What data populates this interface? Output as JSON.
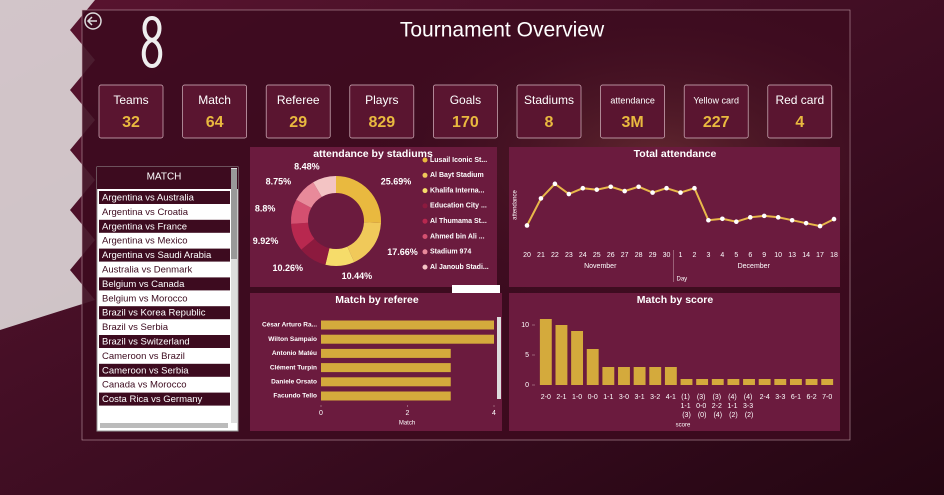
{
  "title": "Tournament Overview",
  "kpis": [
    {
      "label": "Teams",
      "value": 32
    },
    {
      "label": "Match",
      "value": 64
    },
    {
      "label": "Referee",
      "value": 29
    },
    {
      "label": "Playrs",
      "value": 829
    },
    {
      "label": "Goals",
      "value": 170
    },
    {
      "label": "Stadiums",
      "value": 8
    },
    {
      "label": "attendance",
      "value": "3M"
    },
    {
      "label": "Yellow card",
      "value": 227
    },
    {
      "label": "Red card",
      "value": 4
    }
  ],
  "match_list": {
    "header": "MATCH",
    "items": [
      "Argentina vs Australia",
      "Argentina vs Croatia",
      "Argentina vs France",
      "Argentina vs Mexico",
      "Argentina vs Saudi Arabia",
      "Australia vs Denmark",
      "Belgium vs Canada",
      "Belgium vs Morocco",
      "Brazil vs Korea Republic",
      "Brazil vs Serbia",
      "Brazil vs Switzerland",
      "Cameroon vs Brazil",
      "Cameroon vs Serbia",
      "Canada vs Morocco",
      "Costa Rica vs Germany"
    ]
  },
  "chart_data": [
    {
      "type": "pie",
      "title": "attendance by stadiums",
      "categories": [
        "Lusail Iconic St...",
        "Al Bayt Stadium",
        "Khalifa Interna...",
        "Education City ...",
        "Al Thumama St...",
        "Ahmed bin Ali ...",
        "Stadium 974",
        "Al Janoub Stadi..."
      ],
      "values": [
        25.69,
        17.66,
        10.44,
        10.26,
        9.92,
        8.8,
        8.75,
        8.48
      ],
      "value_labels": [
        "25.69%",
        "17.66%",
        "10.44%",
        "10.26%",
        "9.92%",
        "8.8%",
        "8.75%",
        "8.48%"
      ],
      "colors": [
        "#e9b93f",
        "#f0c95a",
        "#f6dc6a",
        "#8c1a3e",
        "#b8284f",
        "#d45070",
        "#e88a9a",
        "#f3c4c4"
      ]
    },
    {
      "type": "line",
      "title": "Total attendance",
      "ylabel": "attendance",
      "xlabel": "Day",
      "x": [
        "20",
        "21",
        "22",
        "23",
        "24",
        "25",
        "26",
        "27",
        "28",
        "29",
        "30",
        "1",
        "2",
        "3",
        "4",
        "5",
        "6",
        "9",
        "10",
        "13",
        "14",
        "17",
        "18"
      ],
      "x_groups": [
        "November",
        "December"
      ],
      "values": [
        67000,
        160000,
        210000,
        175000,
        195000,
        190000,
        200000,
        185000,
        200000,
        180000,
        195000,
        180000,
        195000,
        85000,
        90000,
        80000,
        95000,
        100000,
        95000,
        85000,
        75000,
        65000,
        89000
      ],
      "ylim": [
        0,
        230000
      ],
      "color": "#e8b84a"
    },
    {
      "type": "hbar",
      "title": "Match by referee",
      "xlabel": "Match",
      "categories": [
        "César Arturo Ra...",
        "Wilton Sampaio",
        "Antonio Matéu",
        "Clément Turpin",
        "Daniele Orsato",
        "Facundo Tello"
      ],
      "values": [
        4,
        4,
        3,
        3,
        3,
        3
      ],
      "xlim": [
        0,
        4
      ],
      "xticks": [
        0,
        2,
        4
      ],
      "color": "#d4aa3c"
    },
    {
      "type": "bar",
      "title": "Match by score",
      "xlabel": "score",
      "categories": [
        "2-0",
        "2-1",
        "1-0",
        "0-0",
        "1-1",
        "3-0",
        "3-1",
        "3-2",
        "4-1",
        "(1) 1-1 (3)",
        "(3) 0-0 (0)",
        "(3) 2-2 (4)",
        "(4) 1-1 (2)",
        "(4) 3-3 (2)",
        "2-4",
        "3-3",
        "6-1",
        "6-2",
        "7-0"
      ],
      "values": [
        11,
        10,
        9,
        6,
        3,
        3,
        3,
        3,
        3,
        1,
        1,
        1,
        1,
        1,
        1,
        1,
        1,
        1,
        1
      ],
      "ylim": [
        0,
        12
      ],
      "yticks": [
        0,
        5,
        10
      ],
      "color": "#d4aa3c"
    }
  ]
}
